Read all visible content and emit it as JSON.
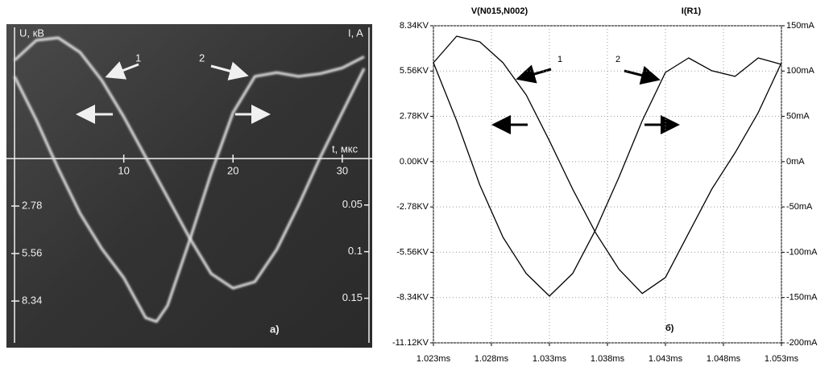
{
  "chart_data": [
    {
      "type": "line",
      "title": "а)",
      "x_label": "t, мкс",
      "y_label": "U, кВ",
      "y2_label": "I, A",
      "annotations": [
        "1",
        "2"
      ],
      "xlim": [
        -0.74,
        32.74
      ],
      "xticks": [
        10,
        20,
        30
      ],
      "ylim": [
        -11.07,
        7.87
      ],
      "yticks": [
        {
          "value": -2.78,
          "label": "2.78"
        },
        {
          "value": -5.56,
          "label": "5.56"
        },
        {
          "value": -8.34,
          "label": "8.34"
        }
      ],
      "y2lim": [
        -0.203,
        0.144
      ],
      "y2ticks": [
        {
          "value": -0.05,
          "label": "0.05"
        },
        {
          "value": -0.1,
          "label": "0.1"
        },
        {
          "value": -0.15,
          "label": "0.15"
        }
      ],
      "grid": false,
      "series": [
        {
          "color": "#e2e2e2",
          "x": [
            0,
            2,
            4,
            6,
            8,
            10,
            12,
            14,
            16,
            18,
            20,
            22,
            24,
            26,
            28,
            30,
            32
          ],
          "values": [
            5.75,
            6.93,
            7.07,
            6.22,
            4.57,
            2.45,
            0.09,
            -2.26,
            -4.62,
            -6.74,
            -7.59,
            -7.21,
            -5.32,
            -2.73,
            0.09,
            2.69,
            5.28
          ]
        },
        {
          "color": "#e2e2e2",
          "axis": "y2",
          "x": [
            0,
            2,
            4,
            6,
            8,
            10,
            12,
            13,
            14,
            16,
            18,
            20,
            22,
            24,
            26,
            28,
            30,
            32
          ],
          "values": [
            0.088,
            0.041,
            -0.011,
            -0.059,
            -0.097,
            -0.128,
            -0.171,
            -0.175,
            -0.158,
            -0.089,
            -0.016,
            0.049,
            0.088,
            0.092,
            0.088,
            0.091,
            0.097,
            0.109
          ]
        }
      ]
    },
    {
      "type": "line",
      "title": "б)",
      "annotations": [
        "1",
        "2"
      ],
      "xlim": [
        1.023,
        1.053
      ],
      "xticks": [
        {
          "value": 1.023,
          "label": "1.023ms"
        },
        {
          "value": 1.028,
          "label": "1.028ms"
        },
        {
          "value": 1.033,
          "label": "1.033ms"
        },
        {
          "value": 1.038,
          "label": "1.038ms"
        },
        {
          "value": 1.043,
          "label": "1.043ms"
        },
        {
          "value": 1.048,
          "label": "1.048ms"
        },
        {
          "value": 1.053,
          "label": "1.053ms"
        }
      ],
      "ylim": [
        -11.12,
        8.34
      ],
      "yticks": [
        {
          "value": 8.34,
          "label": "8.34KV"
        },
        {
          "value": 5.56,
          "label": "5.56KV"
        },
        {
          "value": 2.78,
          "label": "2.78KV"
        },
        {
          "value": 0,
          "label": "0.00KV"
        },
        {
          "value": -2.78,
          "label": "-2.78KV"
        },
        {
          "value": -5.56,
          "label": "-5.56KV"
        },
        {
          "value": -8.34,
          "label": "-8.34KV"
        },
        {
          "value": -11.12,
          "label": "-11.12KV"
        }
      ],
      "y2lim": [
        -200,
        150
      ],
      "y2ticks": [
        {
          "value": 150,
          "label": "150mA"
        },
        {
          "value": 100,
          "label": "100mA"
        },
        {
          "value": 50,
          "label": "50mA"
        },
        {
          "value": 0,
          "label": "0mA"
        },
        {
          "value": -50,
          "label": "-50mA"
        },
        {
          "value": -100,
          "label": "-100mA"
        },
        {
          "value": -150,
          "label": "-150mA"
        },
        {
          "value": -200,
          "label": "-200mA"
        }
      ],
      "grid": true,
      "series": [
        {
          "name": "V(N015,N002)",
          "color": "#000000",
          "x": [
            1.023,
            1.025,
            1.027,
            1.029,
            1.031,
            1.033,
            1.035,
            1.037,
            1.039,
            1.041,
            1.043,
            1.045,
            1.047,
            1.049,
            1.051,
            1.053
          ],
          "values": [
            6.07,
            7.7,
            7.35,
            6.07,
            4.09,
            1.28,
            -1.68,
            -4.39,
            -6.61,
            -8.09,
            -7.11,
            -4.39,
            -1.68,
            0.54,
            3.01,
            6.07
          ]
        },
        {
          "name": "I(R1)",
          "color": "#000000",
          "axis": "y2",
          "x": [
            1.023,
            1.025,
            1.027,
            1.029,
            1.031,
            1.033,
            1.035,
            1.037,
            1.039,
            1.041,
            1.043,
            1.045,
            1.047,
            1.049,
            1.051,
            1.053
          ],
          "values": [
            109.2,
            45.2,
            -25.8,
            -83.5,
            -123.5,
            -148.4,
            -123.5,
            -74.7,
            -17.0,
            45.2,
            98.5,
            114.5,
            100.3,
            94.1,
            114.5,
            107.4
          ]
        }
      ]
    }
  ]
}
